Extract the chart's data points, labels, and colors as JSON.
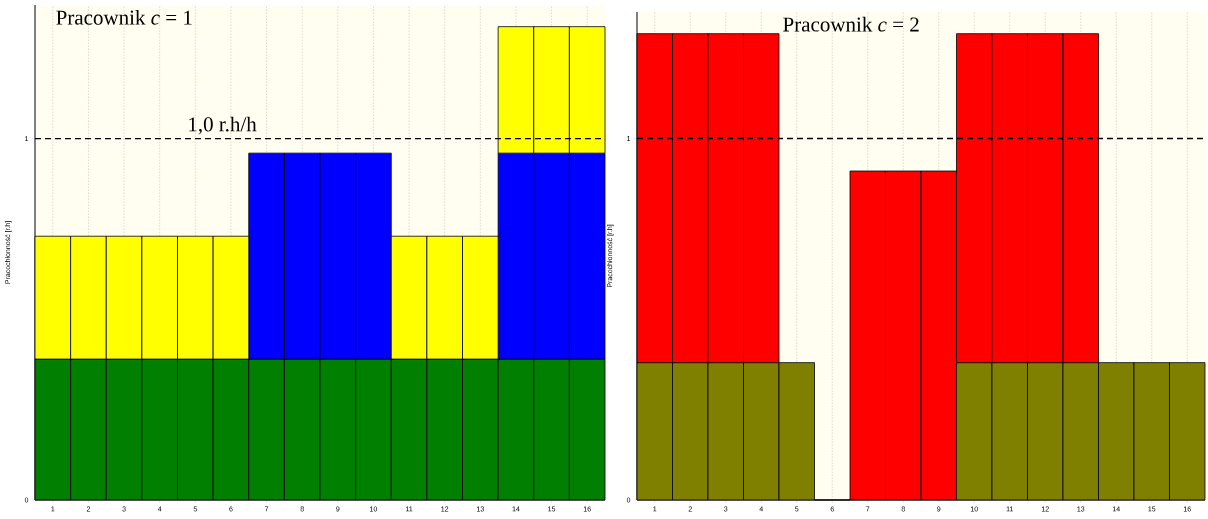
{
  "chart_data": [
    {
      "type": "bar",
      "stacked": true,
      "title": "Pracownik *c* = 1",
      "ylabel": "Pracochłonność [r.h]",
      "categories": [
        "1",
        "2",
        "3",
        "4",
        "5",
        "6",
        "7",
        "8",
        "9",
        "10",
        "11",
        "12",
        "13",
        "14",
        "15",
        "16"
      ],
      "series": [
        {
          "color": "#007f00",
          "values": [
            0.39,
            0.39,
            0.39,
            0.39,
            0.39,
            0.39,
            0.39,
            0.39,
            0.39,
            0.39,
            0.39,
            0.39,
            0.39,
            0.39,
            0.39,
            0.39
          ]
        },
        {
          "color": "#0000ff",
          "values": [
            null,
            null,
            null,
            null,
            null,
            null,
            0.57,
            0.57,
            0.57,
            0.57,
            null,
            null,
            null,
            0.57,
            0.57,
            0.57
          ]
        },
        {
          "color": "#ffff00",
          "values": [
            0.34,
            0.34,
            0.34,
            0.34,
            0.34,
            0.34,
            null,
            null,
            null,
            null,
            0.34,
            0.34,
            0.34,
            0.35,
            0.35,
            0.35
          ]
        }
      ],
      "ylim": [
        0,
        1.37
      ],
      "yticks": [
        0,
        1
      ],
      "grid": "x",
      "ref_lines": [
        {
          "axis": "y",
          "value": 1,
          "label": "1,0 r.h/h",
          "color": "#000000",
          "line_style": "dashed"
        }
      ]
    },
    {
      "type": "bar",
      "stacked": true,
      "title": "Pracownik *c* = 2",
      "ylabel": "Pracochłonność [r.h]",
      "categories": [
        "1",
        "2",
        "3",
        "4",
        "5",
        "6",
        "7",
        "8",
        "9",
        "10",
        "11",
        "12",
        "13",
        "14",
        "15",
        "16"
      ],
      "series": [
        {
          "color": "#808000",
          "values": [
            0.38,
            0.38,
            0.38,
            0.38,
            0.38,
            0,
            null,
            null,
            null,
            0.38,
            0.38,
            0.38,
            0.38,
            0.38,
            0.38,
            0.38
          ]
        },
        {
          "color": "#ff0000",
          "values": [
            0.91,
            0.91,
            0.91,
            0.91,
            null,
            null,
            0.91,
            0.91,
            0.91,
            0.91,
            0.91,
            0.91,
            0.91,
            null,
            null,
            null
          ]
        }
      ],
      "ylim": [
        0,
        1.35
      ],
      "yticks": [
        0,
        1
      ],
      "grid": "x",
      "ref_lines": [
        {
          "axis": "y",
          "value": 1,
          "color": "#000000",
          "line_style": "dashed"
        }
      ]
    }
  ]
}
